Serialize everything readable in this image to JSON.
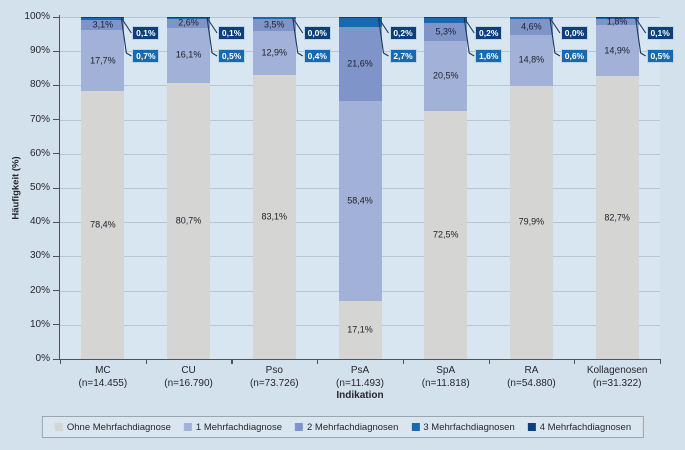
{
  "chart_data": {
    "type": "bar",
    "stacked": true,
    "orientation": "vertical",
    "title": "",
    "xlabel": "Indikation",
    "ylabel": "Häufigkeit (%)",
    "ylim": [
      0,
      100
    ],
    "ytick_labels": [
      "0%",
      "10%",
      "20%",
      "30%",
      "40%",
      "50%",
      "60%",
      "70%",
      "80%",
      "90%",
      "100%"
    ],
    "grid": "horizontal",
    "legend_position": "bottom",
    "value_format": "comma-decimal-percent",
    "categories": [
      "MC",
      "CU",
      "Pso",
      "PsA",
      "SpA",
      "RA",
      "Kollagenosen"
    ],
    "category_sublabels": [
      "(n=14.455)",
      "(n=16.790)",
      "(n=73.726)",
      "(n=11.493)",
      "(n=11.818)",
      "(n=54.880)",
      "(n=31.322)"
    ],
    "series": [
      {
        "name": "Ohne Mehrfachdiagnose",
        "color": "#d5d5d3",
        "label_placement": "inside",
        "values": [
          78.4,
          80.7,
          83.1,
          17.1,
          72.5,
          79.9,
          82.7
        ]
      },
      {
        "name": "1 Mehrfachdiagnose",
        "color": "#a2b1d7",
        "label_placement": "inside",
        "values": [
          17.7,
          16.1,
          12.9,
          58.4,
          20.5,
          14.8,
          14.9
        ]
      },
      {
        "name": "2 Mehrfachdiagnosen",
        "color": "#7f94c8",
        "label_placement": "inside",
        "values": [
          3.1,
          2.6,
          3.5,
          21.6,
          5.3,
          4.6,
          1.8
        ]
      },
      {
        "name": "3 Mehrfachdiagnosen",
        "color": "#176ab0",
        "label_placement": "callout-lower",
        "values": [
          0.7,
          0.5,
          0.4,
          2.7,
          1.6,
          0.6,
          0.5
        ]
      },
      {
        "name": "4 Mehrfachdiagnosen",
        "color": "#0d3e7e",
        "label_placement": "callout-upper",
        "values": [
          0.1,
          0.1,
          0.0,
          0.2,
          0.2,
          0.0,
          0.1
        ]
      }
    ],
    "colors": {
      "figure_background": "#d3e1ed",
      "plot_background": "#d8e6f1",
      "gridline": "#b9c6d2",
      "axis": "#4d5359",
      "label_text": "#21212b",
      "callout_text": "#ffffff",
      "callout_border": "#bdd3e4",
      "leader_line": "#1b3a5f"
    }
  }
}
